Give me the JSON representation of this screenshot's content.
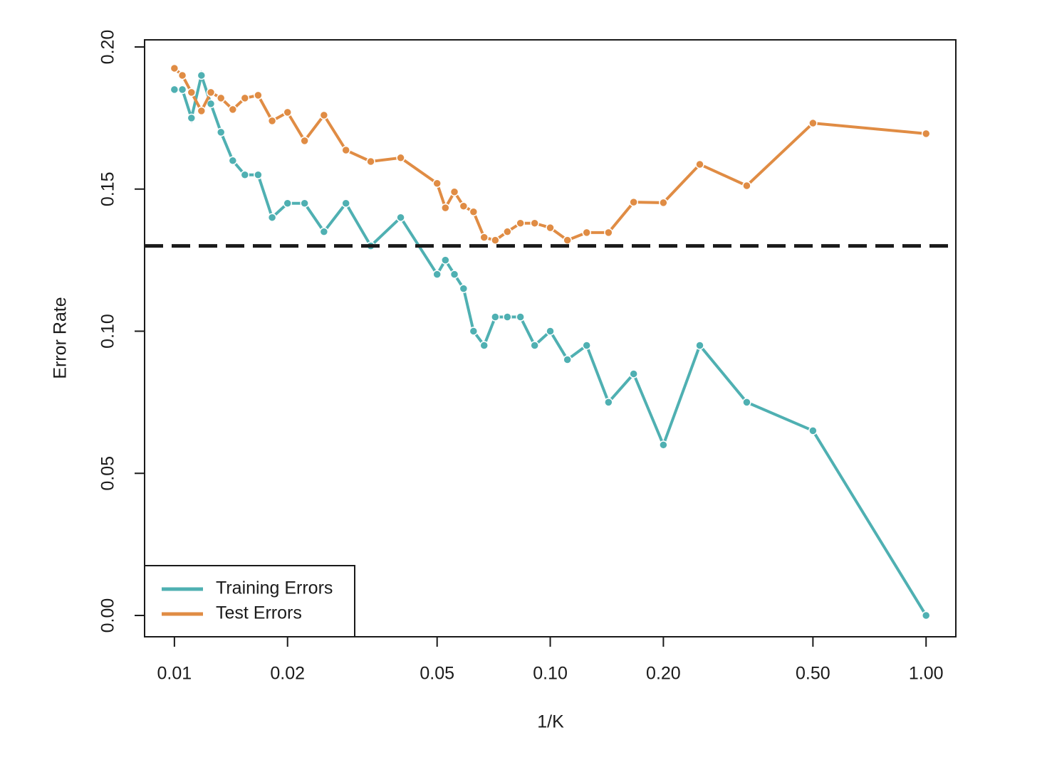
{
  "chart_data": {
    "type": "line",
    "xlabel": "1/K",
    "ylabel": "Error Rate",
    "x": [
      0.01,
      0.0105,
      0.0111,
      0.0118,
      0.0125,
      0.0133,
      0.0143,
      0.0154,
      0.0167,
      0.0182,
      0.02,
      0.0222,
      0.025,
      0.0286,
      0.0333,
      0.04,
      0.05,
      0.0526,
      0.0556,
      0.0588,
      0.0625,
      0.0667,
      0.0714,
      0.0769,
      0.0833,
      0.0909,
      0.1,
      0.1111,
      0.125,
      0.1429,
      0.1667,
      0.2,
      0.25,
      0.3333,
      0.5,
      1
    ],
    "series": [
      {
        "name": "Training Errors",
        "color": "#4fb0b2",
        "values": [
          0.185,
          0.185,
          0.175,
          0.19,
          0.18,
          0.17,
          0.16,
          0.155,
          0.155,
          0.14,
          0.145,
          0.145,
          0.135,
          0.145,
          0.13,
          0.14,
          0.12,
          0.125,
          0.12,
          0.115,
          0.1,
          0.095,
          0.105,
          0.105,
          0.105,
          0.095,
          0.1,
          0.09,
          0.095,
          0.075,
          0.085,
          0.06,
          0.095,
          0.075,
          0.065,
          0
        ]
      },
      {
        "name": "Test Errors",
        "color": "#e08c44",
        "values": [
          0.1925,
          0.19,
          0.184,
          0.1775,
          0.184,
          0.182,
          0.178,
          0.182,
          0.183,
          0.174,
          0.177,
          0.167,
          0.176,
          0.1637,
          0.1597,
          0.161,
          0.152,
          0.1434,
          0.149,
          0.144,
          0.142,
          0.133,
          0.132,
          0.135,
          0.138,
          0.138,
          0.1364,
          0.132,
          0.1347,
          0.1347,
          0.1454,
          0.1452,
          0.1587,
          0.1512,
          0.1732,
          0.1695
        ]
      }
    ],
    "hline": 0.13,
    "hline_color": "#1a1a1a",
    "xscale": "log",
    "xlim": [
      0.00833,
      1.2
    ],
    "xticks": [
      0.01,
      0.02,
      0.05,
      {
        "value": 0.1,
        "label": "0.10"
      },
      {
        "value": 0.2,
        "label": "0.20"
      },
      {
        "value": 0.5,
        "label": "0.50"
      },
      {
        "value": 1,
        "label": "1.00"
      }
    ],
    "ylim": [
      -0.0075,
      0.2025
    ],
    "yticks": [
      {
        "value": 0,
        "label": "0.00"
      },
      {
        "value": 0.05,
        "label": "0.05"
      },
      {
        "value": 0.1,
        "label": "0.10"
      },
      {
        "value": 0.15,
        "label": "0.15"
      },
      {
        "value": 0.2,
        "label": "0.20"
      }
    ],
    "legend": "bottom-left"
  }
}
